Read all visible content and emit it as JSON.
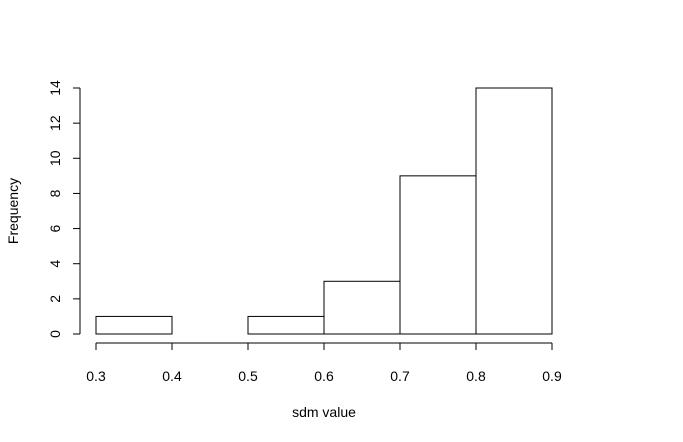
{
  "chart_data": {
    "type": "bar",
    "subtype": "histogram",
    "bins": [
      {
        "x0": 0.3,
        "x1": 0.4,
        "count": 1
      },
      {
        "x0": 0.4,
        "x1": 0.5,
        "count": 0
      },
      {
        "x0": 0.5,
        "x1": 0.6,
        "count": 1
      },
      {
        "x0": 0.6,
        "x1": 0.7,
        "count": 3
      },
      {
        "x0": 0.7,
        "x1": 0.8,
        "count": 9
      },
      {
        "x0": 0.8,
        "x1": 0.9,
        "count": 14
      }
    ],
    "xticks": [
      "0.3",
      "0.4",
      "0.5",
      "0.6",
      "0.7",
      "0.8",
      "0.9"
    ],
    "yticks": [
      "0",
      "2",
      "4",
      "6",
      "8",
      "10",
      "12",
      "14"
    ],
    "xlabel": "sdm value",
    "ylabel": "Frequency",
    "xlim": [
      0.3,
      0.9
    ],
    "ylim": [
      0,
      14
    ],
    "grid": false,
    "legend": "none"
  }
}
